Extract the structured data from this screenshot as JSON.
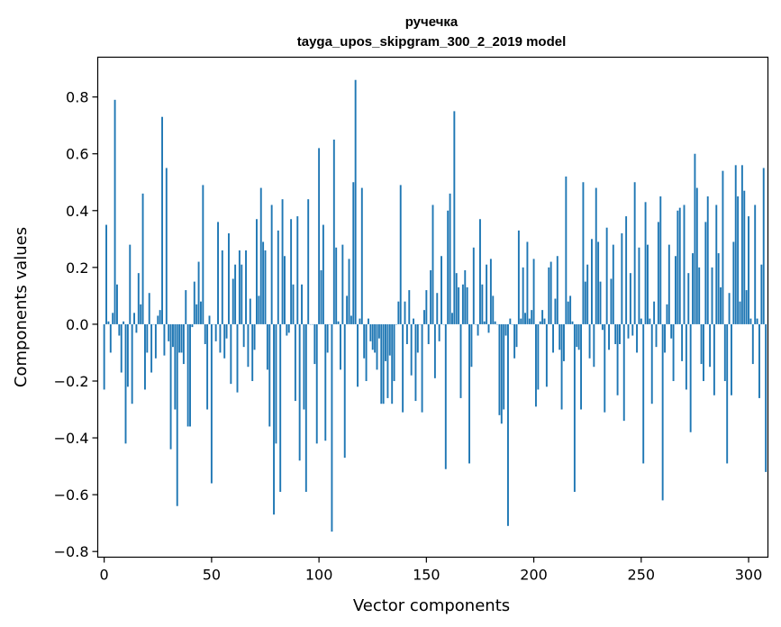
{
  "chart_data": {
    "type": "bar",
    "title": "ручечка",
    "subtitle": "tayga_upos_skipgram_300_2_2019 model",
    "xlabel": "Vector components",
    "ylabel": "Components values",
    "xlim": [
      -3,
      309
    ],
    "ylim": [
      -0.82,
      0.94
    ],
    "xticks": [
      0,
      50,
      100,
      150,
      200,
      250,
      300
    ],
    "xtick_labels": [
      "0",
      "50",
      "100",
      "150",
      "200",
      "250",
      "300"
    ],
    "yticks": [
      -0.8,
      -0.6,
      -0.4,
      -0.2,
      0.0,
      0.2,
      0.4,
      0.6,
      0.8
    ],
    "ytick_labels": [
      "−0.8",
      "−0.6",
      "−0.4",
      "−0.2",
      "0.0",
      "0.2",
      "0.4",
      "0.6",
      "0.8"
    ],
    "bar_color": "#1f77b4",
    "grid": false,
    "values": [
      -0.23,
      0.35,
      0.01,
      -0.1,
      0.04,
      0.79,
      0.14,
      -0.04,
      -0.17,
      0.01,
      -0.42,
      -0.22,
      0.28,
      -0.28,
      0.04,
      -0.03,
      0.18,
      0.07,
      0.46,
      -0.23,
      -0.1,
      0.11,
      -0.17,
      0.0,
      -0.12,
      0.03,
      0.05,
      0.73,
      -0.11,
      0.55,
      -0.06,
      -0.44,
      -0.08,
      -0.3,
      -0.64,
      -0.1,
      -0.1,
      -0.14,
      0.12,
      -0.36,
      -0.36,
      -0.01,
      0.15,
      0.07,
      0.22,
      0.08,
      0.49,
      -0.07,
      -0.3,
      0.03,
      -0.56,
      0.0,
      -0.06,
      0.36,
      -0.1,
      0.26,
      -0.12,
      -0.05,
      0.32,
      -0.21,
      0.16,
      0.21,
      -0.24,
      0.26,
      0.21,
      -0.08,
      0.26,
      -0.15,
      0.09,
      -0.2,
      -0.09,
      0.37,
      0.1,
      0.48,
      0.29,
      0.26,
      -0.16,
      -0.36,
      0.42,
      -0.67,
      -0.42,
      0.33,
      -0.59,
      0.44,
      0.24,
      -0.04,
      -0.03,
      0.37,
      0.14,
      -0.27,
      0.38,
      -0.48,
      0.14,
      -0.3,
      -0.59,
      0.44,
      0.0,
      0.0,
      -0.14,
      -0.42,
      0.62,
      0.19,
      0.35,
      -0.41,
      -0.1,
      0.0,
      -0.73,
      0.65,
      0.27,
      0.01,
      -0.16,
      0.28,
      -0.47,
      0.1,
      0.23,
      0.03,
      0.5,
      0.86,
      -0.22,
      0.02,
      0.48,
      -0.12,
      -0.2,
      0.02,
      -0.06,
      -0.09,
      -0.1,
      -0.16,
      -0.05,
      -0.28,
      -0.28,
      -0.13,
      -0.26,
      -0.11,
      -0.28,
      -0.2,
      0.0,
      0.08,
      0.49,
      -0.31,
      0.08,
      -0.07,
      0.12,
      -0.18,
      0.02,
      -0.27,
      -0.1,
      0.0,
      -0.31,
      0.05,
      0.12,
      -0.07,
      0.19,
      0.42,
      -0.19,
      0.11,
      -0.06,
      0.24,
      0.0,
      -0.51,
      0.4,
      0.46,
      0.04,
      0.75,
      0.18,
      0.13,
      -0.26,
      0.14,
      0.19,
      0.13,
      -0.49,
      -0.15,
      0.27,
      0.0,
      -0.04,
      0.37,
      0.14,
      0.01,
      0.21,
      -0.03,
      0.23,
      0.1,
      0.01,
      0.0,
      -0.32,
      -0.35,
      -0.3,
      -0.04,
      -0.71,
      0.02,
      0.0,
      -0.12,
      -0.08,
      0.33,
      0.02,
      0.2,
      0.04,
      0.29,
      0.02,
      0.05,
      0.23,
      -0.29,
      -0.23,
      0.01,
      0.05,
      0.02,
      -0.22,
      0.2,
      0.22,
      -0.1,
      0.09,
      0.24,
      -0.09,
      -0.3,
      -0.13,
      0.52,
      0.08,
      0.1,
      0.01,
      -0.59,
      -0.08,
      -0.09,
      -0.3,
      0.5,
      0.15,
      0.21,
      -0.12,
      0.3,
      -0.15,
      0.48,
      0.29,
      0.15,
      -0.02,
      -0.31,
      0.34,
      -0.09,
      0.16,
      0.28,
      -0.07,
      -0.25,
      -0.07,
      0.32,
      -0.34,
      0.38,
      -0.05,
      0.18,
      -0.04,
      0.5,
      -0.1,
      0.27,
      0.02,
      -0.49,
      0.43,
      0.28,
      0.02,
      -0.28,
      0.08,
      -0.08,
      0.36,
      0.45,
      -0.62,
      -0.1,
      0.07,
      0.28,
      -0.05,
      -0.2,
      0.24,
      0.4,
      0.41,
      -0.13,
      0.42,
      -0.23,
      0.18,
      -0.38,
      0.25,
      0.6,
      0.48,
      0.2,
      -0.14,
      -0.2,
      0.36,
      0.45,
      -0.15,
      0.2,
      -0.25,
      0.42,
      0.25,
      0.13,
      0.54,
      -0.2,
      -0.49,
      0.11,
      -0.25,
      0.29,
      0.56,
      0.45,
      0.08,
      0.56,
      0.47,
      0.12,
      0.38,
      0.02,
      -0.14,
      0.42,
      0.02,
      -0.26,
      0.21,
      0.55,
      -0.52
    ]
  }
}
